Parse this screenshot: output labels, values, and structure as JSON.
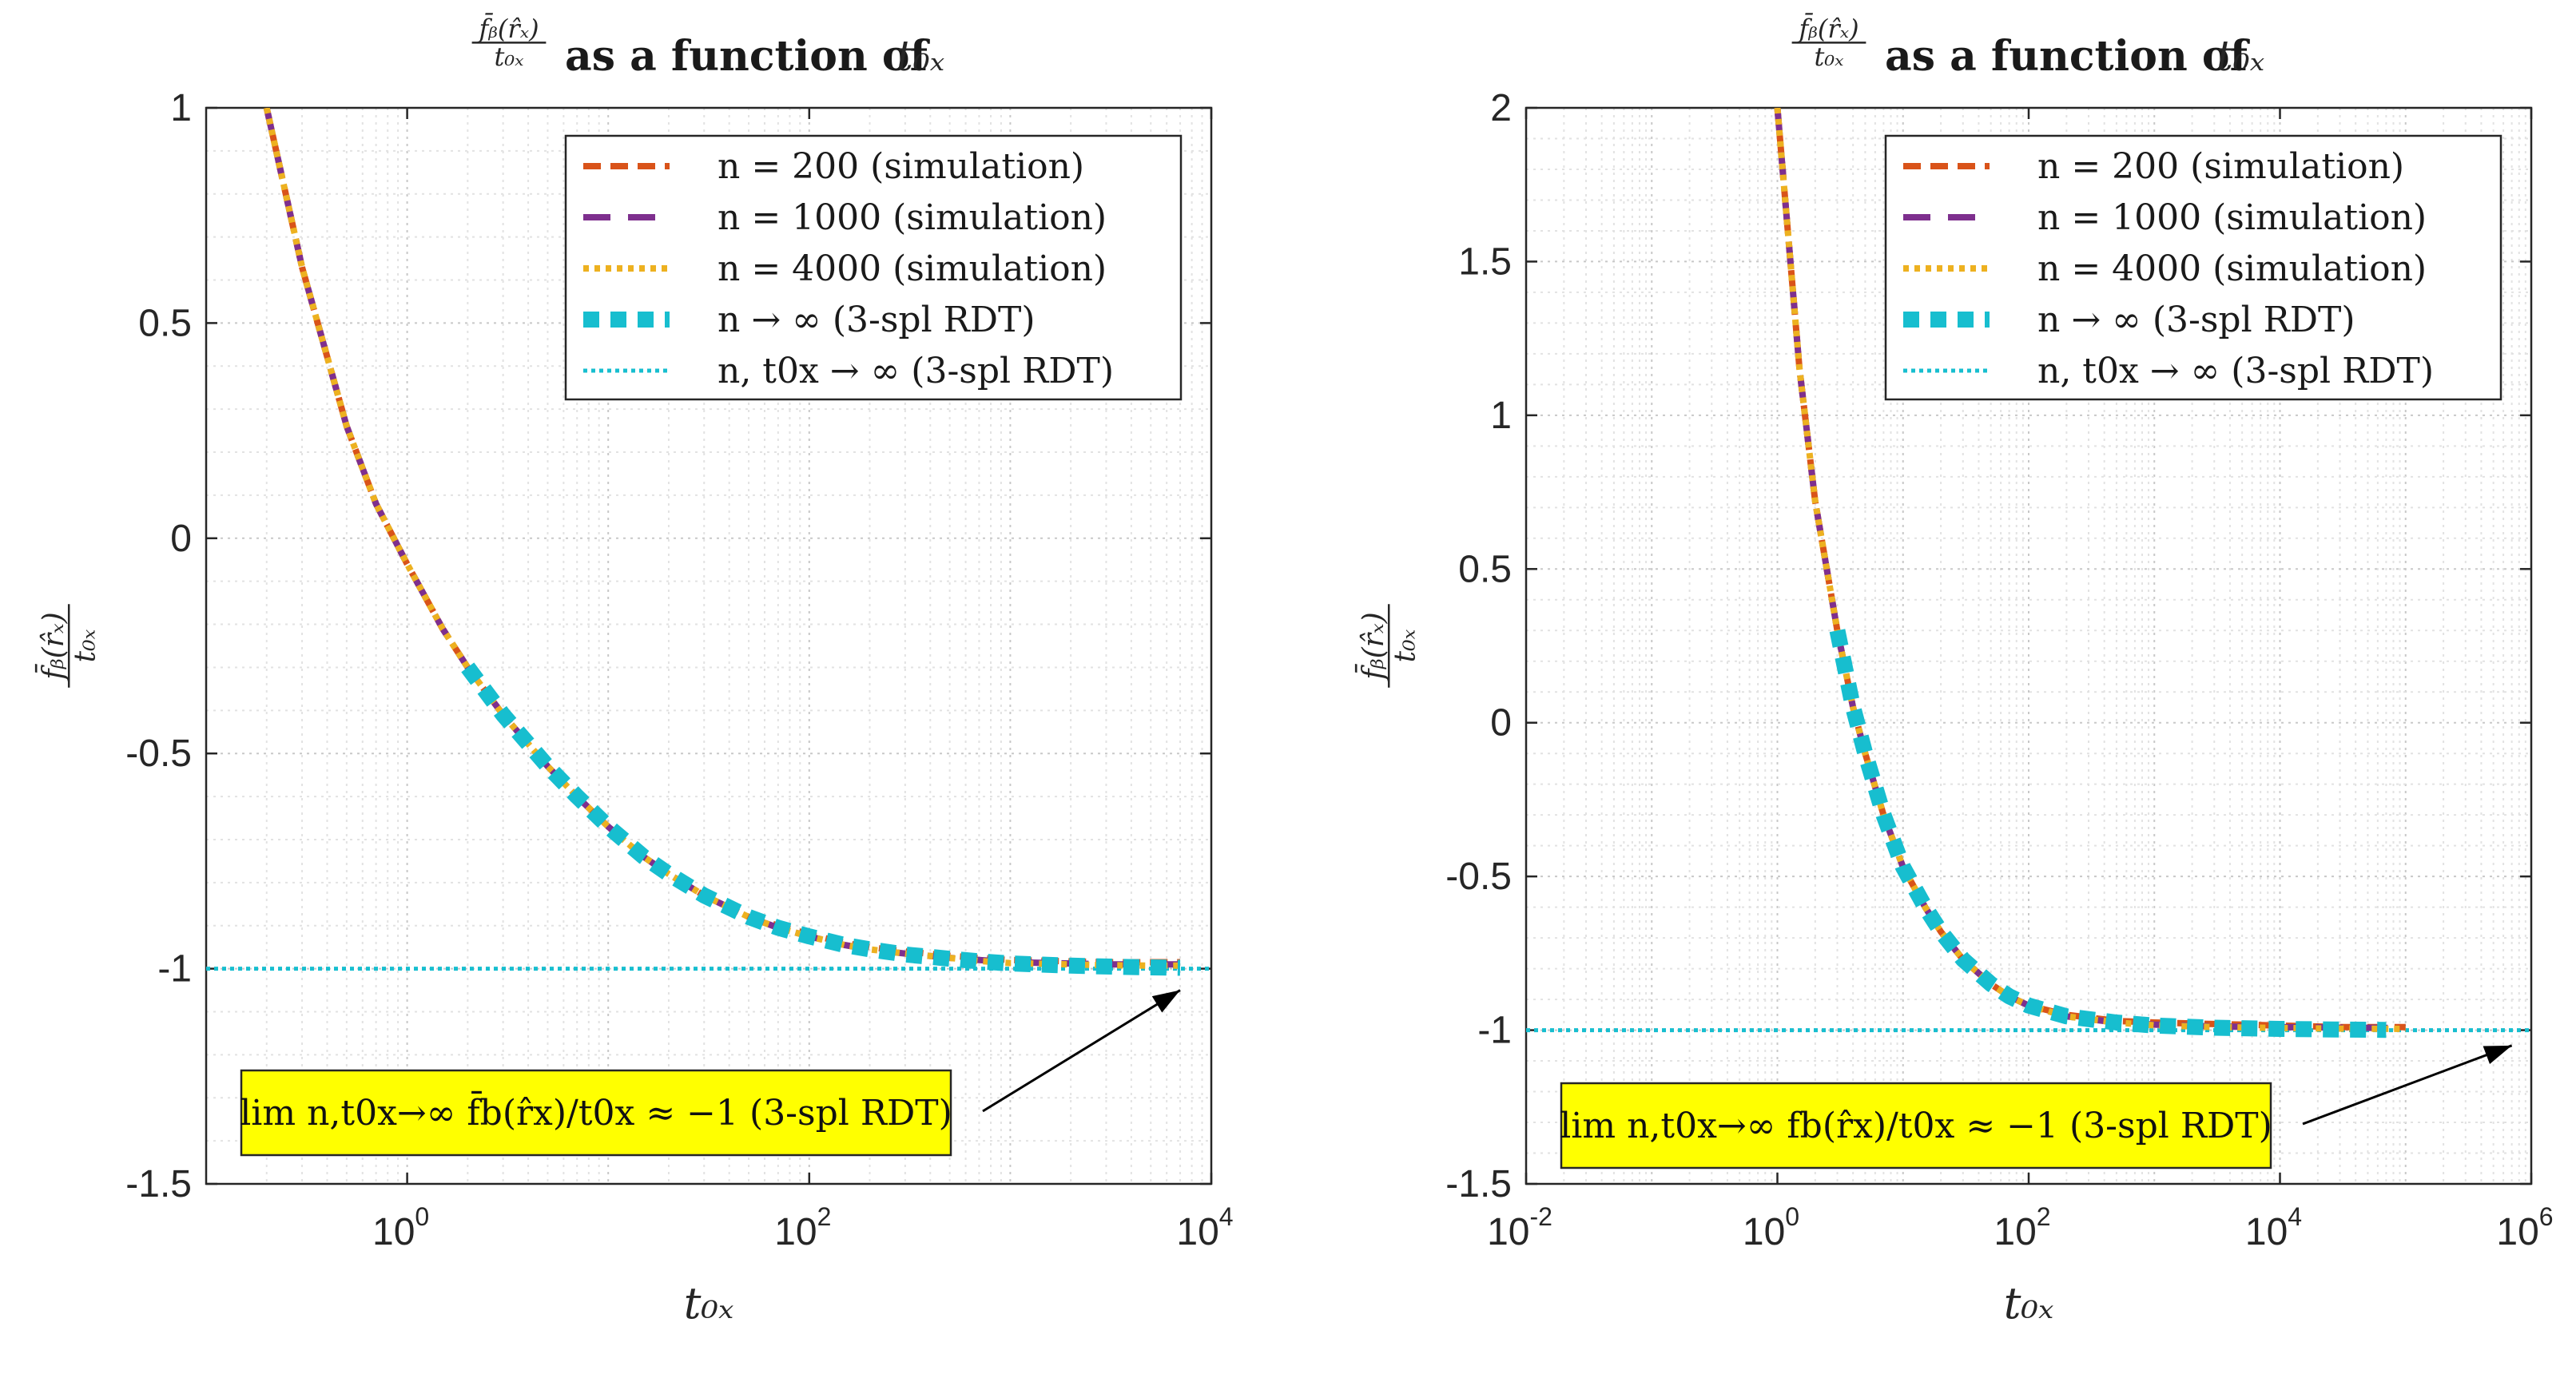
{
  "chart_data": [
    {
      "type": "line",
      "title": "f̄b(r̂x)/t0x as a function of t0x",
      "xlabel": "t0x",
      "ylabel": "f̄b(r̂x)/t0x",
      "xscale": "log",
      "xlim": [
        0.1,
        10000
      ],
      "ylim": [
        -1.5,
        1
      ],
      "xticks": [
        {
          "base": "10",
          "exp": "0"
        },
        {
          "base": "10",
          "exp": "2"
        },
        {
          "base": "10",
          "exp": "4"
        }
      ],
      "yticks": [
        "1",
        "0.5",
        "0",
        "-0.5",
        "-1",
        "-1.5"
      ],
      "grid": true,
      "legend_position": "top-right",
      "series": [
        {
          "name": "n = 200 (simulation)",
          "color": "#d95319",
          "style": "dashed",
          "x": [
            0.2,
            0.3,
            0.5,
            0.7,
            1,
            1.5,
            2,
            3,
            5,
            7,
            10,
            15,
            20,
            30,
            50,
            70,
            100,
            150,
            200,
            300,
            500,
            700,
            1000,
            2000,
            3000,
            5000,
            7000
          ],
          "y": [
            1.0,
            0.63,
            0.26,
            0.08,
            -0.06,
            -0.21,
            -0.3,
            -0.41,
            -0.53,
            -0.6,
            -0.67,
            -0.74,
            -0.78,
            -0.83,
            -0.88,
            -0.9,
            -0.92,
            -0.94,
            -0.95,
            -0.96,
            -0.97,
            -0.975,
            -0.98,
            -0.983,
            -0.985,
            -0.985,
            -0.985
          ]
        },
        {
          "name": "n = 1000 (simulation)",
          "color": "#7e2f8e",
          "style": "long-dashed",
          "x": [
            0.2,
            0.3,
            0.5,
            0.7,
            1,
            1.5,
            2,
            3,
            5,
            7,
            10,
            15,
            20,
            30,
            50,
            70,
            100,
            150,
            200,
            300,
            500,
            700,
            1000,
            2000,
            3000,
            5000,
            7000
          ],
          "y": [
            1.0,
            0.63,
            0.26,
            0.08,
            -0.06,
            -0.21,
            -0.3,
            -0.41,
            -0.53,
            -0.6,
            -0.67,
            -0.74,
            -0.78,
            -0.83,
            -0.88,
            -0.905,
            -0.925,
            -0.945,
            -0.955,
            -0.965,
            -0.975,
            -0.98,
            -0.985,
            -0.988,
            -0.99,
            -0.99,
            -0.99
          ]
        },
        {
          "name": "n = 4000 (simulation)",
          "color": "#edb120",
          "style": "dotted",
          "x": [
            0.2,
            0.3,
            0.5,
            0.7,
            1,
            1.5,
            2,
            3,
            5,
            7,
            10,
            15,
            20,
            30,
            50,
            70,
            100,
            150,
            200,
            300,
            500,
            700,
            1000,
            2000,
            3000,
            5000,
            7000
          ],
          "y": [
            1.0,
            0.63,
            0.26,
            0.08,
            -0.06,
            -0.21,
            -0.3,
            -0.41,
            -0.53,
            -0.6,
            -0.67,
            -0.74,
            -0.78,
            -0.83,
            -0.88,
            -0.905,
            -0.925,
            -0.945,
            -0.955,
            -0.965,
            -0.975,
            -0.982,
            -0.987,
            -0.99,
            -0.992,
            -0.993,
            -0.993
          ]
        },
        {
          "name": "n → ∞ (3-spl RDT)",
          "color": "#17becf",
          "style": "square-dashed",
          "x": [
            2,
            3,
            5,
            7,
            10,
            15,
            20,
            30,
            50,
            70,
            100,
            150,
            200,
            300,
            500,
            700,
            1000,
            2000,
            3000,
            5000,
            7000
          ],
          "y": [
            -0.3,
            -0.41,
            -0.53,
            -0.6,
            -0.67,
            -0.74,
            -0.78,
            -0.83,
            -0.88,
            -0.905,
            -0.925,
            -0.945,
            -0.955,
            -0.967,
            -0.977,
            -0.983,
            -0.988,
            -0.993,
            -0.995,
            -0.997,
            -0.998
          ]
        },
        {
          "name": "n, t0x → ∞ (3-spl RDT)",
          "color": "#17becf",
          "style": "fine-dotted",
          "x": [
            0.1,
            10000
          ],
          "y": [
            -1,
            -1
          ]
        }
      ],
      "annotation": {
        "text": "lim n,t0x→∞ f̄b(r̂x)/t0x ≈ −1 (3-spl RDT)",
        "fill": "#ffff00",
        "arrow_to": {
          "x": 7000,
          "y": -1.05
        }
      }
    },
    {
      "type": "line",
      "title": "f̄b(r̂x)/t0x as a function of t0x",
      "xlabel": "t0x",
      "ylabel": "f̄b(r̂x)/t0x",
      "xscale": "log",
      "xlim": [
        0.01,
        1000000
      ],
      "ylim": [
        -1.5,
        2
      ],
      "xticks": [
        {
          "base": "10",
          "exp": "-2"
        },
        {
          "base": "10",
          "exp": "0"
        },
        {
          "base": "10",
          "exp": "2"
        },
        {
          "base": "10",
          "exp": "4"
        },
        {
          "base": "10",
          "exp": "6"
        }
      ],
      "yticks": [
        "2",
        "1.5",
        "1",
        "0.5",
        "0",
        "-0.5",
        "-1",
        "-1.5"
      ],
      "grid": true,
      "legend_position": "top-right",
      "series": [
        {
          "name": "n = 200 (simulation)",
          "color": "#d95319",
          "style": "dashed",
          "x": [
            1,
            1.5,
            2,
            3,
            4,
            5,
            7,
            10,
            15,
            20,
            30,
            50,
            70,
            100,
            200,
            500,
            1000,
            3000,
            10000,
            30000,
            100000
          ],
          "y": [
            2.0,
            1.15,
            0.72,
            0.3,
            0.05,
            -0.1,
            -0.3,
            -0.47,
            -0.6,
            -0.68,
            -0.77,
            -0.85,
            -0.89,
            -0.92,
            -0.95,
            -0.97,
            -0.975,
            -0.98,
            -0.985,
            -0.99,
            -0.99
          ]
        },
        {
          "name": "n = 1000 (simulation)",
          "color": "#7e2f8e",
          "style": "long-dashed",
          "x": [
            1,
            1.5,
            2,
            3,
            4,
            5,
            7,
            10,
            15,
            20,
            30,
            50,
            70,
            100,
            200,
            500,
            1000,
            3000,
            10000,
            30000,
            100000
          ],
          "y": [
            2.0,
            1.15,
            0.72,
            0.3,
            0.05,
            -0.1,
            -0.3,
            -0.47,
            -0.6,
            -0.68,
            -0.77,
            -0.85,
            -0.89,
            -0.92,
            -0.955,
            -0.975,
            -0.982,
            -0.988,
            -0.99,
            -0.992,
            -0.993
          ]
        },
        {
          "name": "n = 4000 (simulation)",
          "color": "#edb120",
          "style": "dotted",
          "x": [
            1,
            1.5,
            2,
            3,
            4,
            5,
            7,
            10,
            15,
            20,
            30,
            50,
            70,
            100,
            200,
            500,
            1000,
            3000,
            10000,
            30000,
            100000
          ],
          "y": [
            2.0,
            1.15,
            0.72,
            0.3,
            0.05,
            -0.1,
            -0.3,
            -0.47,
            -0.6,
            -0.68,
            -0.77,
            -0.85,
            -0.89,
            -0.92,
            -0.955,
            -0.975,
            -0.984,
            -0.99,
            -0.993,
            -0.995,
            -0.996
          ]
        },
        {
          "name": "n → ∞ (3-spl RDT)",
          "color": "#17becf",
          "style": "square-dashed",
          "x": [
            3,
            4,
            5,
            7,
            10,
            15,
            20,
            30,
            50,
            70,
            100,
            200,
            500,
            1000,
            3000,
            10000,
            30000,
            70000
          ],
          "y": [
            0.3,
            0.05,
            -0.1,
            -0.3,
            -0.47,
            -0.6,
            -0.68,
            -0.77,
            -0.85,
            -0.89,
            -0.92,
            -0.955,
            -0.975,
            -0.985,
            -0.992,
            -0.996,
            -0.998,
            -0.999
          ]
        },
        {
          "name": "n, t0x → ∞ (3-spl RDT)",
          "color": "#17becf",
          "style": "fine-dotted",
          "x": [
            0.01,
            1000000
          ],
          "y": [
            -1,
            -1
          ]
        }
      ],
      "annotation": {
        "text": "lim n,t0x→∞ fb(r̂x)/t0x ≈ −1 (3-spl RDT)",
        "fill": "#ffff00",
        "arrow_to": {
          "x": 700000,
          "y": -1.05
        }
      }
    }
  ]
}
